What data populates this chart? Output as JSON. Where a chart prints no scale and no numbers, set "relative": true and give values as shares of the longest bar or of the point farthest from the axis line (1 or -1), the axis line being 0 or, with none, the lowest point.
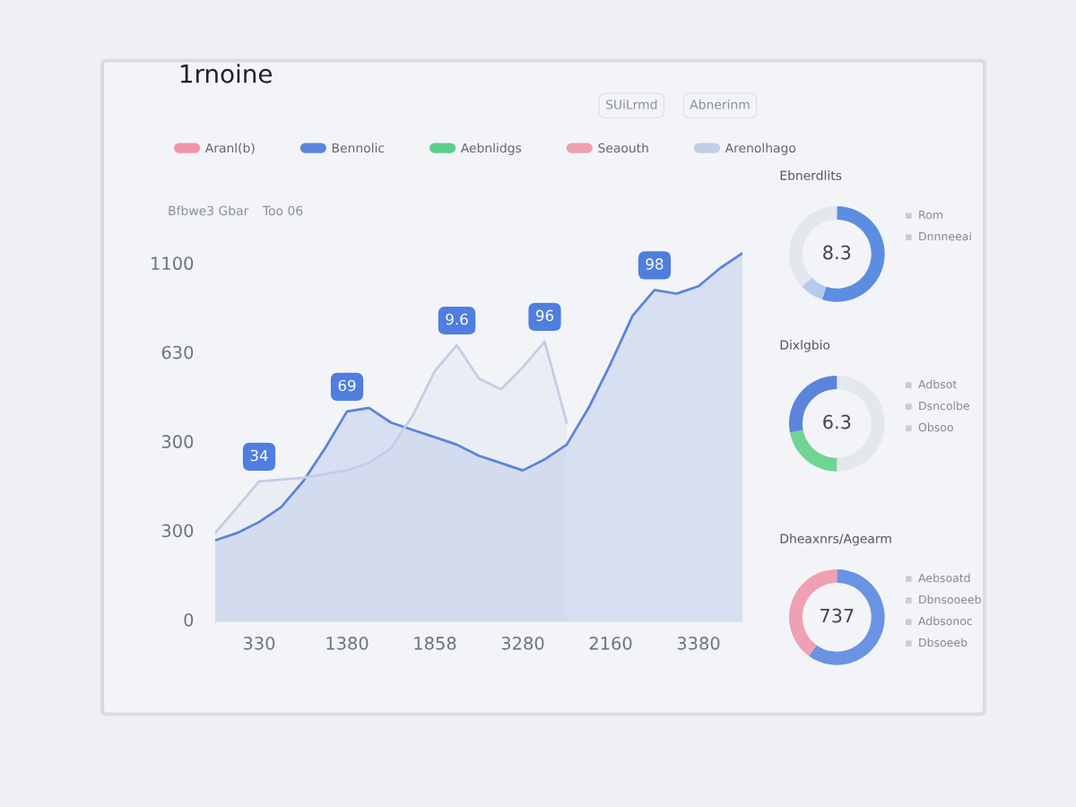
{
  "chart_data": [
    {
      "type": "line",
      "title": "1rnoine",
      "relative": true,
      "annotations": [
        "SUiLrmd",
        "Abnerinm",
        "Bfbwe3 Gbar",
        "Too 06",
        "0",
        "300",
        "300",
        "630",
        "1100",
        {
          "text": "34",
          "x": "330",
          "y": 0.38
        },
        {
          "text": "69",
          "x": "1380",
          "y": 0.57
        },
        {
          "text": "9.6",
          "y": 0.75
        },
        {
          "text": "96",
          "y": 0.76
        },
        {
          "text": "98",
          "y": 0.9
        }
      ],
      "categories": [
        null,
        null,
        "330",
        null,
        null,
        null,
        "1380",
        null,
        null,
        null,
        "1858",
        null,
        null,
        null,
        "3280",
        null,
        null,
        null,
        "2160",
        null,
        null,
        null,
        "3380",
        null,
        null
      ],
      "legend": "top",
      "series": [
        {
          "name": "Aranl(b)",
          "color": "#ef93a8",
          "values": [
            null,
            null,
            null,
            null,
            null,
            null,
            null,
            null,
            null,
            null,
            null,
            null,
            null,
            null,
            null,
            null,
            null,
            null,
            null,
            null,
            null,
            null,
            null,
            null,
            null
          ]
        },
        {
          "name": "Bennolic",
          "type": "area",
          "color": "#5b84db",
          "values": [
            0.22,
            0.24,
            0.27,
            0.31,
            0.38,
            0.47,
            0.57,
            0.58,
            0.54,
            0.52,
            0.5,
            0.48,
            0.45,
            0.43,
            0.41,
            0.44,
            0.48,
            0.58,
            0.7,
            0.83,
            0.9,
            0.89,
            0.91,
            0.96,
            1
          ]
        },
        {
          "name": "Aebnlidgs",
          "color": "#5ccf8a",
          "values": [
            null,
            null,
            null,
            null,
            null,
            null,
            null,
            null,
            null,
            null,
            null,
            null,
            null,
            null,
            null,
            null,
            null,
            null,
            null,
            null,
            null,
            null,
            null,
            null,
            null
          ]
        },
        {
          "name": "Seaouth",
          "color": "#ef9fb0",
          "values": [
            null,
            null,
            null,
            null,
            null,
            null,
            null,
            null,
            null,
            null,
            null,
            null,
            null,
            null,
            null,
            null,
            null,
            null,
            null,
            null,
            null,
            null,
            null,
            null,
            null
          ]
        },
        {
          "name": "Arenolhago",
          "type": "area",
          "color": "#c3cde6",
          "values": [
            0.24,
            0.31,
            0.38,
            0.385,
            0.39,
            0.4,
            0.41,
            0.43,
            0.47,
            0.56,
            0.68,
            0.75,
            0.66,
            0.63,
            0.69,
            0.76,
            0.54,
            null,
            null,
            null,
            null,
            null,
            null,
            null,
            null
          ]
        }
      ]
    },
    {
      "type": "donut",
      "title": "Ebnerdlits",
      "annotations": [
        "8.3",
        "Rom",
        "Dnnneeai"
      ],
      "categories": [
        null,
        null,
        null
      ],
      "values": [
        55,
        8,
        37
      ],
      "colors": [
        "#5b8ee0",
        "#b7caee",
        "#e4e7ee"
      ]
    },
    {
      "type": "donut",
      "title": "Dixlgbio",
      "annotations": [
        "6.3",
        "Adbsot",
        "Dsncolbe",
        "Obsoo"
      ],
      "categories": [
        null,
        null,
        null
      ],
      "values": [
        50,
        22,
        28
      ],
      "colors": [
        "#e4e7ee",
        "#6fd494",
        "#5b84db"
      ]
    },
    {
      "type": "donut",
      "title": "Dheaxnrs/Agearm",
      "annotations": [
        "737",
        "Aebsoatd",
        "Dbnsooeeb",
        "Adbsonoc",
        "Dbsoeeb"
      ],
      "categories": [
        null,
        null
      ],
      "values": [
        60,
        40
      ],
      "colors": [
        "#6b93e3",
        "#f0a0b4"
      ]
    }
  ]
}
